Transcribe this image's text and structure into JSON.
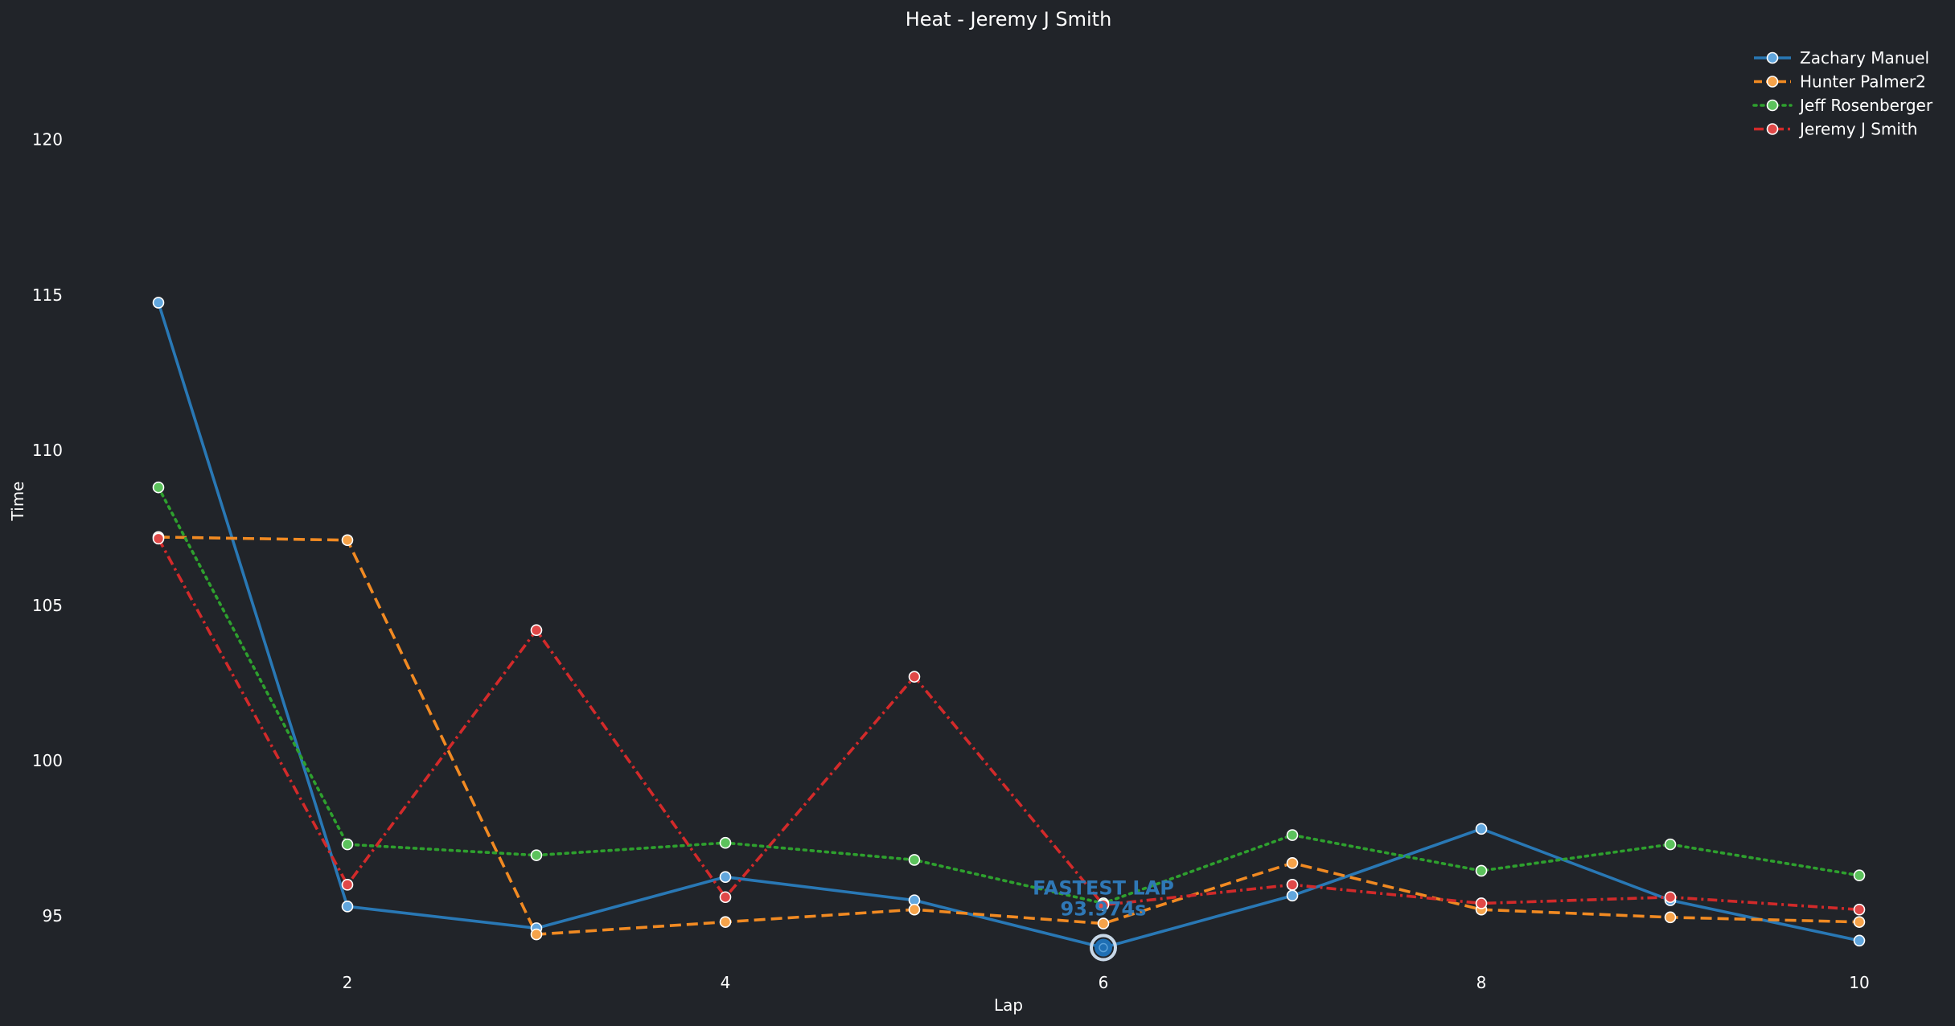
{
  "chart_data": {
    "type": "line",
    "title": "Heat - Jeremy J Smith",
    "xlabel": "Lap",
    "ylabel": "Time",
    "x": [
      1,
      2,
      3,
      4,
      5,
      6,
      7,
      8,
      9,
      10
    ],
    "xticks": [
      2,
      4,
      6,
      8,
      10
    ],
    "yticks": [
      95,
      100,
      105,
      110,
      115,
      120
    ],
    "xlim": [
      0.85,
      10.15
    ],
    "ylim": [
      92.9,
      124.5
    ],
    "grid": false,
    "legend_position": "top-right",
    "series": [
      {
        "name": "Zachary Manuel",
        "color": "#2978b5",
        "marker_fill": "#61a6dd",
        "line_style": "solid",
        "values": [
          114.75,
          95.3,
          94.6,
          96.25,
          95.5,
          93.974,
          95.65,
          97.8,
          95.5,
          94.2
        ]
      },
      {
        "name": "Hunter Palmer2",
        "color": "#f18a22",
        "marker_fill": "#f6a34a",
        "line_style": "dashed",
        "values": [
          107.2,
          107.1,
          94.4,
          94.8,
          95.2,
          94.75,
          96.7,
          95.2,
          94.95,
          94.8
        ]
      },
      {
        "name": "Jeff Rosenberger",
        "color": "#2ea02e",
        "marker_fill": "#5cc25c",
        "line_style": "dotted",
        "values": [
          108.8,
          97.3,
          96.95,
          97.35,
          96.8,
          95.4,
          97.6,
          96.45,
          97.3,
          96.3
        ]
      },
      {
        "name": "Jeremy J Smith",
        "color": "#d22a2a",
        "marker_fill": "#e04848",
        "line_style": "dashdot",
        "values": [
          107.15,
          96.0,
          104.2,
          95.6,
          102.7,
          95.35,
          96.0,
          95.4,
          95.6,
          95.2
        ]
      }
    ],
    "annotation": {
      "text": "FASTEST LAP",
      "value_text": "93.974s",
      "x": 6,
      "y": 93.974,
      "color": "#2f78b6"
    }
  }
}
